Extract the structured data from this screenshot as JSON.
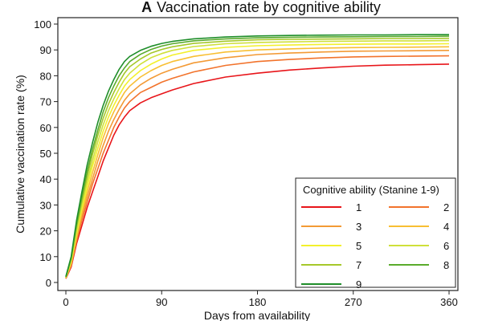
{
  "chart_data": {
    "type": "line",
    "title_letter": "A",
    "title": "Vaccination rate by cognitive ability",
    "xlabel": "Days from availability",
    "ylabel": "Cumulative vaccination rate (%)",
    "xlim": [
      0,
      360
    ],
    "ylim": [
      0,
      100
    ],
    "xticks": [
      0,
      90,
      180,
      270,
      360
    ],
    "yticks": [
      0,
      10,
      20,
      30,
      40,
      50,
      60,
      70,
      80,
      90,
      100
    ],
    "grid": true,
    "legend": {
      "title": "Cognitive ability (Stanine 1-9)",
      "placement": "bottom-right",
      "columns": 2
    },
    "x": [
      0,
      5,
      10,
      15,
      20,
      25,
      30,
      35,
      40,
      45,
      50,
      55,
      60,
      70,
      80,
      90,
      100,
      120,
      150,
      180,
      210,
      240,
      270,
      300,
      330,
      360
    ],
    "series": [
      {
        "name": "1",
        "color": "#e8151a",
        "values": [
          1.5,
          6,
          15,
          22,
          29,
          35,
          41,
          47,
          52,
          57,
          61,
          64,
          66.5,
          69.5,
          71.5,
          73,
          74.5,
          77,
          79.5,
          81,
          82.2,
          83,
          83.7,
          84.1,
          84.3,
          84.5
        ]
      },
      {
        "name": "2",
        "color": "#f2732c",
        "values": [
          1.6,
          6.5,
          16,
          24,
          31,
          38,
          44,
          50,
          55,
          60,
          64,
          67.5,
          70,
          73.5,
          75.5,
          77.5,
          79,
          81.5,
          84,
          85.5,
          86.3,
          86.9,
          87.3,
          87.5,
          87.6,
          87.7
        ]
      },
      {
        "name": "3",
        "color": "#f39a35",
        "values": [
          1.7,
          7,
          17,
          25.5,
          33,
          40,
          47,
          53,
          58.5,
          63,
          67,
          70.5,
          73,
          76.5,
          79,
          81,
          82.5,
          85,
          87,
          88.2,
          88.8,
          89.2,
          89.5,
          89.6,
          89.7,
          89.8
        ]
      },
      {
        "name": "4",
        "color": "#f8bf33",
        "values": [
          1.8,
          7.5,
          18,
          27,
          35,
          42.5,
          49.5,
          56,
          61.5,
          66,
          70,
          73.5,
          76,
          79.5,
          82,
          84,
          85.5,
          87.5,
          89.2,
          90,
          90.4,
          90.7,
          90.9,
          91,
          91.1,
          91.2
        ]
      },
      {
        "name": "5",
        "color": "#f3f02c",
        "values": [
          1.9,
          8,
          19,
          28.5,
          37,
          45,
          52,
          58.5,
          64,
          68.5,
          72.5,
          76,
          78.5,
          82,
          84.5,
          86.5,
          88,
          89.8,
          91,
          91.6,
          91.9,
          92.1,
          92.2,
          92.3,
          92.3,
          92.4
        ]
      },
      {
        "name": "6",
        "color": "#cfe03a",
        "values": [
          2,
          8.5,
          20,
          30,
          39,
          47,
          54.5,
          61,
          66.5,
          71,
          75,
          78.5,
          81,
          84.5,
          87,
          88.6,
          89.8,
          91.3,
          92.4,
          92.9,
          93.1,
          93.3,
          93.4,
          93.5,
          93.5,
          93.6
        ]
      },
      {
        "name": "7",
        "color": "#a5c82a",
        "values": [
          2.1,
          9,
          21.5,
          31.5,
          41,
          49.5,
          57,
          63.5,
          69,
          73.5,
          77.5,
          81,
          83.5,
          86.5,
          88.8,
          90.2,
          91.2,
          92.5,
          93.4,
          93.9,
          94.1,
          94.2,
          94.3,
          94.4,
          94.4,
          94.5
        ]
      },
      {
        "name": "8",
        "color": "#5aab2c",
        "values": [
          2.2,
          9.5,
          22.5,
          33,
          43,
          51.5,
          59,
          66,
          71.5,
          76,
          80,
          83,
          85.5,
          88.3,
          90.2,
          91.5,
          92.4,
          93.5,
          94.3,
          94.7,
          94.9,
          95,
          95.1,
          95.2,
          95.2,
          95.3
        ]
      },
      {
        "name": "9",
        "color": "#1f8e2a",
        "values": [
          2.3,
          10,
          24,
          35,
          45.5,
          54,
          62,
          68.5,
          74,
          78.5,
          82.5,
          85.5,
          87.5,
          89.8,
          91.4,
          92.5,
          93.3,
          94.3,
          95,
          95.4,
          95.6,
          95.7,
          95.8,
          95.8,
          95.9,
          95.9
        ]
      }
    ]
  }
}
